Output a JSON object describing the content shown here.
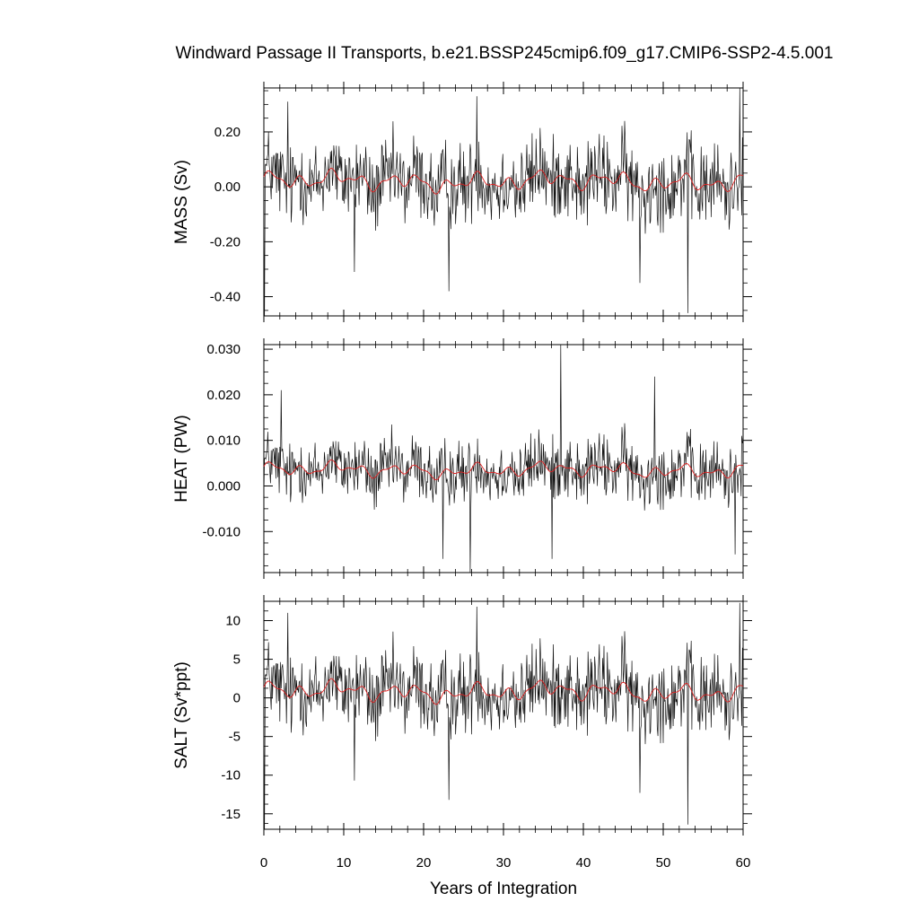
{
  "title": "Windward Passage II Transports, b.e21.BSSP245cmip6.f09_g17.CMIP6-SSP2-4.5.001",
  "xlabel": "Years of Integration",
  "colors": {
    "raw": "#111111",
    "smoothed": "#e02020"
  },
  "chart_data": [
    {
      "type": "line",
      "ylabel": "MASS (Sv)",
      "xlim": [
        0,
        60
      ],
      "ylim": [
        -0.47,
        0.36
      ],
      "xticks": [
        "0",
        "10",
        "20",
        "30",
        "40",
        "50",
        "60"
      ],
      "yticks": [
        {
          "value": 0.2,
          "label": "0.20"
        },
        {
          "value": 0.0,
          "label": "0.00"
        },
        {
          "value": -0.2,
          "label": "-0.20"
        },
        {
          "value": -0.4,
          "label": "-0.40"
        }
      ],
      "ymin": -0.47,
      "ymax": 0.36,
      "mean": 0.02,
      "amp": 0.09,
      "spikes": [
        [
          0.1,
          -0.47
        ],
        [
          11.3,
          -0.31
        ],
        [
          23.2,
          -0.38
        ],
        [
          26.7,
          0.33
        ],
        [
          47.1,
          -0.35
        ],
        [
          53.1,
          -0.46
        ],
        [
          59.6,
          0.36
        ],
        [
          3.0,
          0.31
        ]
      ]
    },
    {
      "type": "line",
      "ylabel": "HEAT (PW)",
      "xlim": [
        0,
        60
      ],
      "ylim": [
        -0.019,
        0.031
      ],
      "xticks": [
        "0",
        "10",
        "20",
        "30",
        "40",
        "50",
        "60"
      ],
      "yticks": [
        {
          "value": 0.03,
          "label": "0.030"
        },
        {
          "value": 0.02,
          "label": "0.020"
        },
        {
          "value": 0.01,
          "label": "0.010"
        },
        {
          "value": 0.0,
          "label": "0.000"
        },
        {
          "value": -0.01,
          "label": "-0.010"
        }
      ],
      "ymin": -0.019,
      "ymax": 0.031,
      "mean": 0.0035,
      "amp": 0.0042,
      "spikes": [
        [
          37.2,
          0.031
        ],
        [
          25.8,
          -0.019
        ],
        [
          22.4,
          -0.016
        ],
        [
          36.1,
          -0.016
        ],
        [
          59.0,
          -0.015
        ],
        [
          48.9,
          0.024
        ],
        [
          2.2,
          0.021
        ]
      ]
    },
    {
      "type": "line",
      "ylabel": "SALT (Sv*ppt)",
      "xlim": [
        0,
        60
      ],
      "ylim": [
        -17,
        12.5
      ],
      "xticks": [
        "0",
        "10",
        "20",
        "30",
        "40",
        "50",
        "60"
      ],
      "yticks": [
        {
          "value": 10,
          "label": "10"
        },
        {
          "value": 5,
          "label": "5"
        },
        {
          "value": 0,
          "label": "0"
        },
        {
          "value": -5,
          "label": "-5"
        },
        {
          "value": -10,
          "label": "-10"
        },
        {
          "value": -15,
          "label": "-15"
        }
      ],
      "ymin": -17,
      "ymax": 12.5,
      "mean": 0.8,
      "amp": 3.2,
      "spikes": [
        [
          0.1,
          -17
        ],
        [
          11.3,
          -10.7
        ],
        [
          23.2,
          -13.2
        ],
        [
          26.7,
          11.8
        ],
        [
          47.1,
          -12.3
        ],
        [
          53.1,
          -16.4
        ],
        [
          59.6,
          12.3
        ],
        [
          3.0,
          11.0
        ]
      ]
    }
  ]
}
